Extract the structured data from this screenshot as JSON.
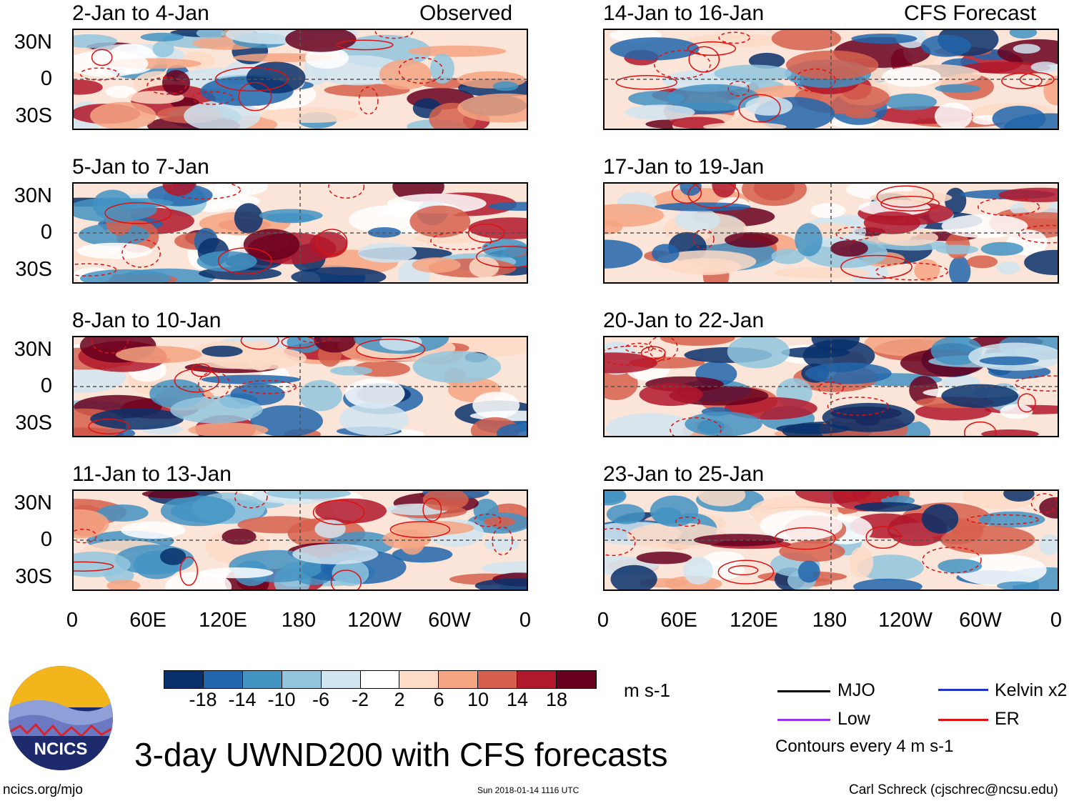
{
  "panels": [
    {
      "title": "2-Jan to 4-Jan",
      "tag": "Observed"
    },
    {
      "title": "14-Jan to 16-Jan",
      "tag": "CFS Forecast"
    },
    {
      "title": "5-Jan to 7-Jan"
    },
    {
      "title": "17-Jan to 19-Jan"
    },
    {
      "title": "8-Jan to 10-Jan"
    },
    {
      "title": "20-Jan to 22-Jan"
    },
    {
      "title": "11-Jan to 13-Jan"
    },
    {
      "title": "23-Jan to 25-Jan"
    }
  ],
  "lat_labels": [
    "30N",
    "0",
    "30S"
  ],
  "lon_labels": [
    "0",
    "60E",
    "120E",
    "180",
    "120W",
    "60W",
    "0"
  ],
  "colorbar": {
    "labels": [
      "-18",
      "-14",
      "-10",
      "-6",
      "-2",
      "2",
      "6",
      "10",
      "14",
      "18"
    ],
    "colors": [
      "#08306b",
      "#2166ac",
      "#4393c3",
      "#92c5de",
      "#d1e5f0",
      "#ffffff",
      "#fddbc7",
      "#f4a582",
      "#d6604d",
      "#b2182b",
      "#67001f"
    ],
    "units": "m s-1"
  },
  "legend": {
    "items": [
      {
        "label": "MJO",
        "color": "#000000"
      },
      {
        "label": "Kelvin x2",
        "color": "#2233cc"
      },
      {
        "label": "Low",
        "color": "#9933ee"
      },
      {
        "label": "ER",
        "color": "#dd1111"
      }
    ],
    "note": "Contours every 4 m s-1"
  },
  "logo": {
    "text": "NCICS"
  },
  "main_title": "3-day UWND200 with CFS forecasts",
  "footer": {
    "left": "ncics.org/mjo",
    "center": "Sun 2018-01-14 1116 UTC",
    "right": "Carl Schreck (cjschrec@ncsu.edu)"
  }
}
